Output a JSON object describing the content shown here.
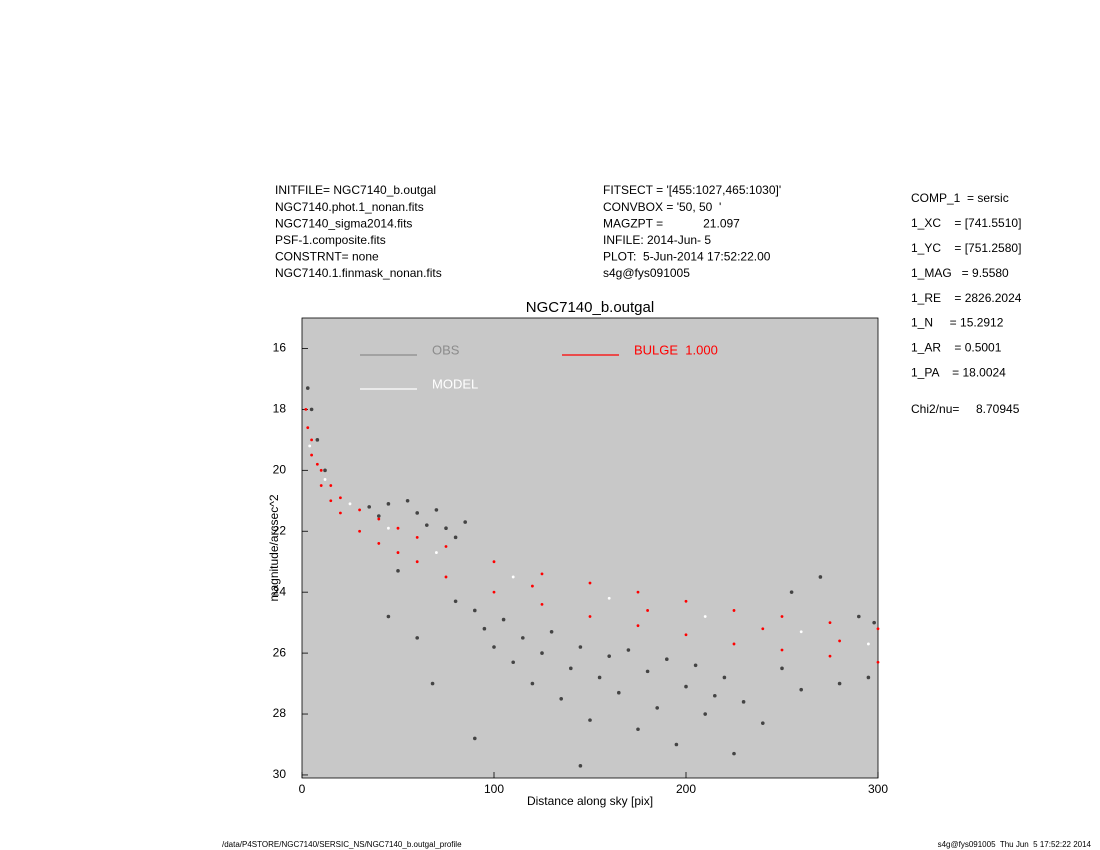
{
  "chart_data": {
    "type": "scatter",
    "title": "NGC7140_b.outgal",
    "xlabel": "Distance along sky [pix]",
    "ylabel": "magnitude/arcsec^2",
    "xlim": [
      0,
      300
    ],
    "xticks": [
      0,
      100,
      200,
      300
    ],
    "ylim": [
      30.1,
      15
    ],
    "yticks": [
      16,
      18,
      20,
      22,
      24,
      26,
      28,
      30
    ],
    "grid": false,
    "background": "#c8c8c8",
    "info_left": [
      "INITFILE= NGC7140_b.outgal",
      "NGC7140.phot.1_nonan.fits",
      "NGC7140_sigma2014.fits",
      "PSF-1.composite.fits",
      "CONSTRNT= none",
      "NGC7140.1.finmask_nonan.fits"
    ],
    "info_middle": [
      "FITSECT = '[455:1027,465:1030]'",
      "CONVBOX = '50, 50  '",
      "MAGZPT =            21.097",
      "INFILE: 2014-Jun- 5",
      "PLOT:  5-Jun-2014 17:52:22.00",
      "s4g@fys091005"
    ],
    "info_right": [
      "COMP_1  = sersic",
      "1_XC    = [741.5510]",
      "1_YC    = [751.2580]",
      "1_MAG   = 9.5580",
      "1_RE    = 2826.2024",
      "1_N     = 15.2912",
      "1_AR    = 0.5001",
      "1_PA    = 18.0024"
    ],
    "chi2_label": "Chi2/nu=",
    "chi2_value": "8.70945",
    "footer_left": "/data/P4STORE/NGC7140/SERSIC_NS/NGC7140_b.outgal_profile",
    "footer_right": "s4g@fys091005  Thu Jun  5 17:52:22 2014",
    "series": [
      {
        "name": "OBS",
        "color": "#444444",
        "legend_color": "#8c8c8c",
        "x": [
          3,
          5,
          8,
          12,
          35,
          40,
          45,
          55,
          60,
          65,
          70,
          75,
          80,
          85,
          50,
          45,
          60,
          80,
          90,
          95,
          100,
          105,
          110,
          115,
          120,
          125,
          130,
          135,
          140,
          145,
          150,
          155,
          160,
          165,
          170,
          175,
          180,
          185,
          190,
          195,
          200,
          205,
          210,
          215,
          220,
          225,
          230,
          240,
          250,
          255,
          260,
          270,
          280,
          290,
          295,
          298,
          68,
          90,
          145
        ],
        "values": [
          17.3,
          18.0,
          19.0,
          20.0,
          21.2,
          21.5,
          21.1,
          21.0,
          21.4,
          21.8,
          21.3,
          21.9,
          22.2,
          21.7,
          23.3,
          24.8,
          25.5,
          24.3,
          24.6,
          25.2,
          25.8,
          24.9,
          26.3,
          25.5,
          27.0,
          26.0,
          25.3,
          27.5,
          26.5,
          25.8,
          28.2,
          26.8,
          26.1,
          27.3,
          25.9,
          28.5,
          26.6,
          27.8,
          26.2,
          29.0,
          27.1,
          26.4,
          28.0,
          27.4,
          26.8,
          29.3,
          27.6,
          28.3,
          26.5,
          24.0,
          27.2,
          23.5,
          27.0,
          24.8,
          26.8,
          25.0,
          27.0,
          28.8,
          29.7
        ]
      },
      {
        "name": "MODEL",
        "color": "#ffffff",
        "legend_color": "#ffffff",
        "x": [
          4,
          12,
          25,
          45,
          70,
          110,
          160,
          210,
          260,
          295
        ],
        "values": [
          19.2,
          20.3,
          21.1,
          21.9,
          22.7,
          23.5,
          24.2,
          24.8,
          25.3,
          25.7
        ]
      },
      {
        "name": "BULGE  1.000",
        "color": "#ff0000",
        "legend_color": "#ff0000",
        "x": [
          2,
          3,
          5,
          5,
          8,
          10,
          10,
          15,
          15,
          20,
          20,
          30,
          30,
          40,
          40,
          50,
          50,
          60,
          60,
          75,
          75,
          100,
          100,
          125,
          125,
          150,
          150,
          175,
          175,
          200,
          200,
          225,
          225,
          250,
          250,
          275,
          275,
          300,
          300,
          120,
          180,
          240,
          280
        ],
        "values": [
          18.0,
          18.6,
          19.0,
          19.5,
          19.8,
          20.0,
          20.5,
          20.5,
          21.0,
          20.9,
          21.4,
          21.3,
          22.0,
          21.6,
          22.4,
          21.9,
          22.7,
          22.2,
          23.0,
          22.5,
          23.5,
          23.0,
          24.0,
          23.4,
          24.4,
          23.7,
          24.8,
          24.0,
          25.1,
          24.3,
          25.4,
          24.6,
          25.7,
          24.8,
          25.9,
          25.0,
          26.1,
          25.2,
          26.3,
          23.8,
          24.6,
          25.2,
          25.6
        ]
      }
    ]
  }
}
